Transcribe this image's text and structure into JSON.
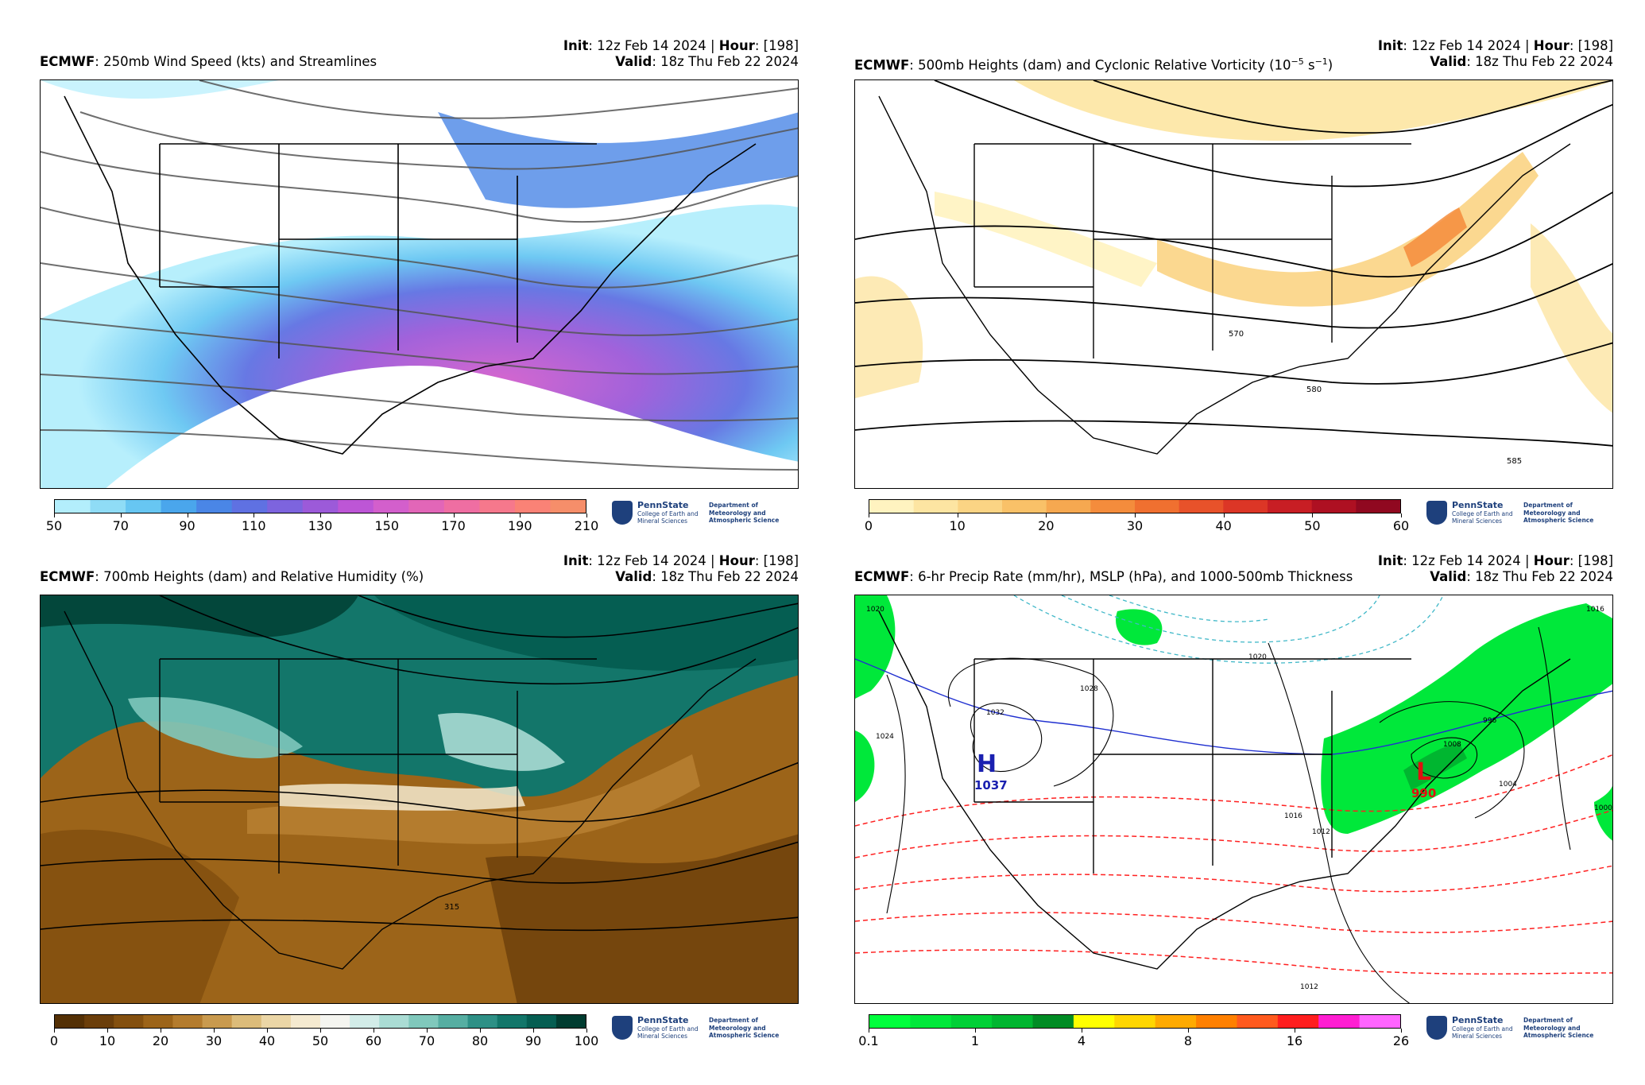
{
  "panels": [
    {
      "init_label": "Init",
      "init_value": ": 12z Feb 14 2024 | ",
      "hour_label": "Hour",
      "hour_value": ": [198]",
      "model": "ECMWF",
      "title": ": 250mb Wind Speed (kts) and Streamlines",
      "valid_label": "Valid",
      "valid_value": ": 18z Thu Feb 22 2024",
      "colorbar_ticks": [
        "50",
        "70",
        "90",
        "110",
        "130",
        "150",
        "170",
        "190",
        "210"
      ],
      "colorbar_colors": [
        "#b3eefc",
        "#8fdcf6",
        "#67c6f2",
        "#4aa6ec",
        "#4a86e6",
        "#5f71e2",
        "#7d64de",
        "#9c5ad9",
        "#bd56d6",
        "#d35fcc",
        "#e266b8",
        "#ef6ea2",
        "#f6788c",
        "#fa8276",
        "#f68e6a"
      ],
      "map_labels": []
    },
    {
      "init_label": "Init",
      "init_value": ": 12z Feb 14 2024 | ",
      "hour_label": "Hour",
      "hour_value": ": [198]",
      "model": "ECMWF",
      "title": ": 500mb Heights (dam) and Cyclonic Relative Vorticity (10",
      "title_sup": "−5",
      "title_mid": " s",
      "title_sup2": "−1",
      "title_end": ")",
      "valid_label": "Valid",
      "valid_value": ": 18z Thu Feb 22 2024",
      "colorbar_ticks": [
        "0",
        "10",
        "20",
        "30",
        "40",
        "50",
        "60"
      ],
      "colorbar_colors": [
        "#fff3c0",
        "#fde5a2",
        "#fbd484",
        "#f9c168",
        "#f6a850",
        "#f48c3c",
        "#f07030",
        "#e8522a",
        "#dc3626",
        "#c81e24",
        "#ae1022",
        "#900820"
      ],
      "map_labels": [
        "570",
        "580",
        "585"
      ]
    },
    {
      "init_label": "Init",
      "init_value": ": 12z Feb 14 2024 | ",
      "hour_label": "Hour",
      "hour_value": ": [198]",
      "model": "ECMWF",
      "title": ": 700mb Heights (dam) and Relative Humidity (%)",
      "valid_label": "Valid",
      "valid_value": ": 18z Thu Feb 22 2024",
      "colorbar_ticks": [
        "0",
        "10",
        "20",
        "30",
        "40",
        "50",
        "60",
        "70",
        "80",
        "90",
        "100"
      ],
      "colorbar_colors": [
        "#543005",
        "#6b3e0a",
        "#84500f",
        "#9c6419",
        "#b47c2e",
        "#c99a4e",
        "#dcbc7a",
        "#ebd6a6",
        "#f5ead0",
        "#f5f5f0",
        "#d2ece8",
        "#aadcd4",
        "#80c8bc",
        "#56aea2",
        "#2e9086",
        "#13766a",
        "#055e52",
        "#003c30"
      ],
      "map_labels": [
        "315"
      ]
    },
    {
      "init_label": "Init",
      "init_value": ": 12z Feb 14 2024 | ",
      "hour_label": "Hour",
      "hour_value": ": [198]",
      "model": "ECMWF",
      "title": ": 6-hr Precip Rate (mm/hr), MSLP (hPa), and 1000-500mb Thickness",
      "valid_label": "Valid",
      "valid_value": ": 18z Thu Feb 22 2024",
      "colorbar_ticks": [
        "0.1",
        "1",
        "4",
        "8",
        "16",
        "26"
      ],
      "colorbar_colors": [
        "#00ff3c",
        "#00e83a",
        "#00d036",
        "#00b630",
        "#008c24",
        "#ffff00",
        "#ffd600",
        "#ffaa00",
        "#ff8000",
        "#ff5a1e",
        "#ff1e1e",
        "#ff1ed2",
        "#ff64ff"
      ],
      "map_labels": [
        "1020",
        "1024",
        "1028",
        "1032",
        "1016",
        "1012",
        "1008",
        "1004",
        "1000",
        "996",
        "1020",
        "1016",
        "1012"
      ],
      "high_label": "H",
      "high_value": "1037",
      "low_label": "L",
      "low_value": "990"
    }
  ],
  "logo": {
    "name": "PennState",
    "college": "College of Earth and Mineral Sciences",
    "dept": "Department of Meteorology and Atmospheric Science"
  }
}
